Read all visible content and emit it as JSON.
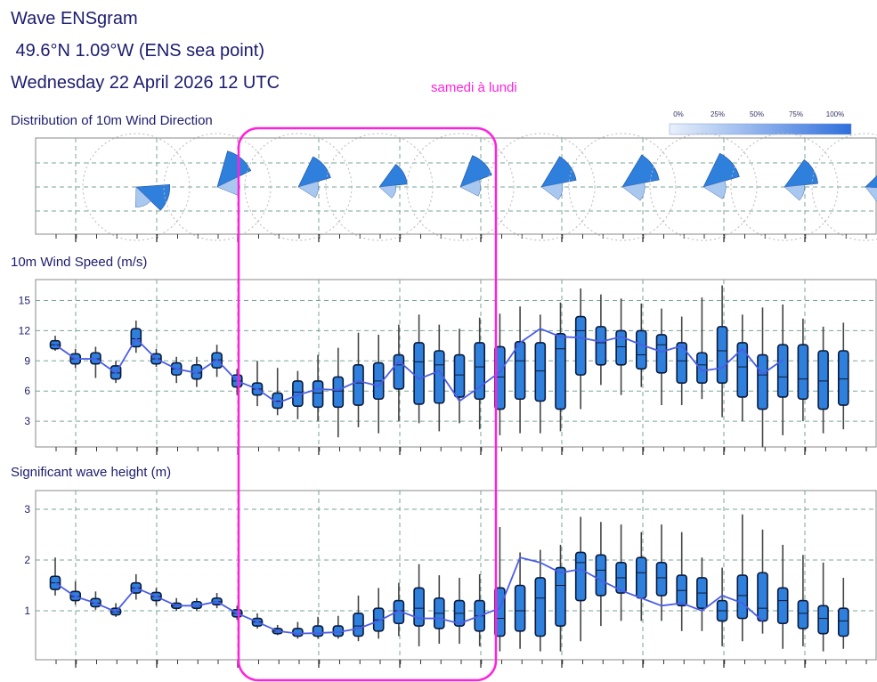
{
  "header": {
    "line1": "Wave ENSgram",
    "line2": " 49.6°N 1.09°W (ENS sea point)",
    "line3": "Wednesday 22 April 2026 12 UTC"
  },
  "annotation": {
    "text": "samedi à lundi",
    "color": "#ff22dd"
  },
  "colors": {
    "box": "#2f7fdc",
    "line": "#4a5ee8",
    "grid": "#7aa596",
    "frame": "#888888"
  },
  "chart_data": [
    {
      "type": "wind-rose-strip",
      "title": "Distribution of 10m Wind Direction",
      "legend": {
        "ticks": [
          "0%",
          "25%",
          "50%",
          "75%",
          "100%"
        ],
        "placement": "top-right"
      },
      "roses": [
        {
          "dir": 110,
          "strength": 0.9
        },
        {
          "dir": 40,
          "strength": 1.0
        },
        {
          "dir": 50,
          "strength": 0.9
        },
        {
          "dir": 60,
          "strength": 0.75
        },
        {
          "dir": 45,
          "strength": 0.9
        },
        {
          "dir": 55,
          "strength": 0.95
        },
        {
          "dir": 55,
          "strength": 1.0
        },
        {
          "dir": 50,
          "strength": 1.0
        },
        {
          "dir": 60,
          "strength": 0.9
        },
        {
          "dir": 70,
          "strength": 0.8
        }
      ]
    },
    {
      "type": "boxplot",
      "title": "10m Wind Speed (m/s)",
      "ylim": [
        0,
        17
      ],
      "yticks": [
        3,
        6,
        9,
        12,
        15
      ],
      "series": [
        {
          "min": 10,
          "q1": 10.2,
          "med": 10.6,
          "q3": 11,
          "max": 11.5
        },
        {
          "min": 8.3,
          "q1": 8.7,
          "med": 9.2,
          "q3": 9.7,
          "max": 10.2
        },
        {
          "min": 7.3,
          "q1": 8.7,
          "med": 9.2,
          "q3": 9.8,
          "max": 10.4
        },
        {
          "min": 6.8,
          "q1": 7.2,
          "med": 7.8,
          "q3": 8.5,
          "max": 9
        },
        {
          "min": 9.8,
          "q1": 10.4,
          "med": 11.2,
          "q3": 12.2,
          "max": 13
        },
        {
          "min": 8.4,
          "q1": 8.7,
          "med": 9.2,
          "q3": 9.7,
          "max": 10.2
        },
        {
          "min": 6.8,
          "q1": 7.6,
          "med": 8.2,
          "q3": 8.8,
          "max": 9.4
        },
        {
          "min": 6.4,
          "q1": 7.2,
          "med": 7.8,
          "q3": 8.6,
          "max": 9.4
        },
        {
          "min": 7.4,
          "q1": 8.3,
          "med": 9.1,
          "q3": 9.8,
          "max": 10.6
        },
        {
          "min": 5.6,
          "q1": 6.4,
          "med": 7,
          "q3": 7.6,
          "max": 8.2
        },
        {
          "min": 4.5,
          "q1": 5.6,
          "med": 6.2,
          "q3": 6.8,
          "max": 9
        },
        {
          "min": 3.6,
          "q1": 4.3,
          "med": 5,
          "q3": 5.8,
          "max": 8.3
        },
        {
          "min": 3.2,
          "q1": 4.5,
          "med": 5.9,
          "q3": 7,
          "max": 8
        },
        {
          "min": 3,
          "q1": 4.4,
          "med": 5.8,
          "q3": 7,
          "max": 9.6
        },
        {
          "min": 1.4,
          "q1": 4.4,
          "med": 6,
          "q3": 7.4,
          "max": 10.3
        },
        {
          "min": 2.4,
          "q1": 4.6,
          "med": 6.8,
          "q3": 8.6,
          "max": 11.8
        },
        {
          "min": 1.8,
          "q1": 5.2,
          "med": 7,
          "q3": 8.8,
          "max": 11.6
        },
        {
          "min": 3,
          "q1": 6.2,
          "med": 8.6,
          "q3": 9.6,
          "max": 12.6
        },
        {
          "min": 2.8,
          "q1": 4.7,
          "med": 8.9,
          "q3": 10.8,
          "max": 13.6
        },
        {
          "min": 2,
          "q1": 4.8,
          "med": 8.6,
          "q3": 10,
          "max": 12.6
        },
        {
          "min": 2.8,
          "q1": 5.4,
          "med": 7.6,
          "q3": 9.6,
          "max": 12.2
        },
        {
          "min": 2.2,
          "q1": 5.2,
          "med": 8.4,
          "q3": 10.8,
          "max": 13.3
        },
        {
          "min": 1.6,
          "q1": 4.2,
          "med": 7.4,
          "q3": 10.4,
          "max": 13.7
        },
        {
          "min": 1.8,
          "q1": 5.2,
          "med": 9,
          "q3": 10.9,
          "max": 14.4
        },
        {
          "min": 1.8,
          "q1": 5,
          "med": 8,
          "q3": 10.8,
          "max": 13.6
        },
        {
          "min": 2,
          "q1": 4.2,
          "med": 10.2,
          "q3": 11.7,
          "max": 14.8
        },
        {
          "min": 4.2,
          "q1": 7.6,
          "med": 12,
          "q3": 13.4,
          "max": 16.2
        },
        {
          "min": 6.6,
          "q1": 8.6,
          "med": 10.8,
          "q3": 12.4,
          "max": 15.6
        },
        {
          "min": 5.6,
          "q1": 8.6,
          "med": 10.4,
          "q3": 12,
          "max": 15.2
        },
        {
          "min": 6.4,
          "q1": 8.2,
          "med": 9.6,
          "q3": 12,
          "max": 14.7
        },
        {
          "min": 4.6,
          "q1": 7.8,
          "med": 10.6,
          "q3": 11.6,
          "max": 14.2
        },
        {
          "min": 4.6,
          "q1": 6.8,
          "med": 9,
          "q3": 10.8,
          "max": 13.4
        },
        {
          "min": 5.2,
          "q1": 6.8,
          "med": 8.6,
          "q3": 9.8,
          "max": 15.3
        },
        {
          "min": 3.4,
          "q1": 6.8,
          "med": 10,
          "q3": 12.4,
          "max": 16.5
        },
        {
          "min": 3,
          "q1": 5.4,
          "med": 8.4,
          "q3": 10.8,
          "max": 13.6
        },
        {
          "min": 0.4,
          "q1": 4.2,
          "med": 7.6,
          "q3": 9.6,
          "max": 14.3
        },
        {
          "min": 1.6,
          "q1": 5.4,
          "med": 7.4,
          "q3": 10.6,
          "max": 14.6
        },
        {
          "min": 3,
          "q1": 5.2,
          "med": 7.2,
          "q3": 10.6,
          "max": 13.2
        },
        {
          "min": 1.8,
          "q1": 4.2,
          "med": 7,
          "q3": 10,
          "max": 12.4
        },
        {
          "min": 2.2,
          "q1": 4.6,
          "med": 7.2,
          "q3": 10,
          "max": 12.8
        }
      ],
      "mean_line": [
        10.6,
        9.2,
        9.2,
        7.8,
        11.2,
        9.2,
        8.2,
        7.8,
        9.1,
        7,
        6.2,
        4.8,
        5.6,
        6.2,
        6.1,
        7,
        6.5,
        9,
        7.2,
        8,
        5,
        6.4,
        7.9,
        10.8,
        12.2,
        11.4,
        11.3,
        10.9,
        11.4,
        10.6,
        9.9,
        10.5,
        8,
        8.3,
        10.2,
        7.7,
        9.1
      ]
    },
    {
      "type": "boxplot",
      "title": "Significant wave height (m)",
      "ylim": [
        0,
        3.4
      ],
      "yticks": [
        1,
        2,
        3
      ],
      "series": [
        {
          "min": 1.3,
          "q1": 1.42,
          "med": 1.55,
          "q3": 1.68,
          "max": 2.05
        },
        {
          "min": 1.12,
          "q1": 1.2,
          "med": 1.28,
          "q3": 1.38,
          "max": 1.58
        },
        {
          "min": 1.02,
          "q1": 1.08,
          "med": 1.15,
          "q3": 1.24,
          "max": 1.38
        },
        {
          "min": 0.88,
          "q1": 0.92,
          "med": 0.98,
          "q3": 1.05,
          "max": 1.15
        },
        {
          "min": 1.22,
          "q1": 1.35,
          "med": 1.45,
          "q3": 1.55,
          "max": 1.72
        },
        {
          "min": 1.1,
          "q1": 1.2,
          "med": 1.28,
          "q3": 1.36,
          "max": 1.45
        },
        {
          "min": 1.0,
          "q1": 1.05,
          "med": 1.1,
          "q3": 1.15,
          "max": 1.25
        },
        {
          "min": 1.0,
          "q1": 1.05,
          "med": 1.1,
          "q3": 1.18,
          "max": 1.25
        },
        {
          "min": 1.05,
          "q1": 1.12,
          "med": 1.18,
          "q3": 1.25,
          "max": 1.35
        },
        {
          "min": 0.82,
          "q1": 0.88,
          "med": 0.95,
          "q3": 1.02,
          "max": 1.1
        },
        {
          "min": 0.65,
          "q1": 0.7,
          "med": 0.78,
          "q3": 0.85,
          "max": 0.95
        },
        {
          "min": 0.52,
          "q1": 0.55,
          "med": 0.6,
          "q3": 0.65,
          "max": 0.72
        },
        {
          "min": 0.45,
          "q1": 0.5,
          "med": 0.55,
          "q3": 0.65,
          "max": 0.78
        },
        {
          "min": 0.45,
          "q1": 0.5,
          "med": 0.56,
          "q3": 0.7,
          "max": 0.88
        },
        {
          "min": 0.45,
          "q1": 0.5,
          "med": 0.58,
          "q3": 0.7,
          "max": 0.9
        },
        {
          "min": 0.4,
          "q1": 0.5,
          "med": 0.7,
          "q3": 0.95,
          "max": 1.3
        },
        {
          "min": 0.45,
          "q1": 0.6,
          "med": 0.82,
          "q3": 1.05,
          "max": 1.45
        },
        {
          "min": 0.5,
          "q1": 0.75,
          "med": 1,
          "q3": 1.2,
          "max": 1.55
        },
        {
          "min": 0.3,
          "q1": 0.7,
          "med": 1.05,
          "q3": 1.45,
          "max": 1.92
        },
        {
          "min": 0.35,
          "q1": 0.65,
          "med": 0.95,
          "q3": 1.25,
          "max": 1.7
        },
        {
          "min": 0.35,
          "q1": 0.7,
          "med": 0.95,
          "q3": 1.2,
          "max": 1.65
        },
        {
          "min": 0.3,
          "q1": 0.6,
          "med": 0.9,
          "q3": 1.2,
          "max": 1.72
        },
        {
          "min": 0.2,
          "q1": 0.5,
          "med": 0.85,
          "q3": 1.45,
          "max": 2.65
        },
        {
          "min": 0.25,
          "q1": 0.6,
          "med": 1.0,
          "q3": 1.5,
          "max": 2.15
        },
        {
          "min": 0.2,
          "q1": 0.5,
          "med": 1.25,
          "q3": 1.65,
          "max": 2.2
        },
        {
          "min": 0.2,
          "q1": 0.7,
          "med": 1.5,
          "q3": 1.85,
          "max": 2.3
        },
        {
          "min": 0.4,
          "q1": 1.2,
          "med": 1.95,
          "q3": 2.15,
          "max": 2.85
        },
        {
          "min": 0.7,
          "q1": 1.3,
          "med": 1.8,
          "q3": 2.1,
          "max": 2.75
        },
        {
          "min": 0.8,
          "q1": 1.35,
          "med": 1.65,
          "q3": 1.95,
          "max": 2.7
        },
        {
          "min": 0.8,
          "q1": 1.25,
          "med": 1.75,
          "q3": 2.05,
          "max": 2.55
        },
        {
          "min": 0.8,
          "q1": 1.3,
          "med": 1.65,
          "q3": 1.95,
          "max": 2.7
        },
        {
          "min": 0.6,
          "q1": 1.1,
          "med": 1.4,
          "q3": 1.7,
          "max": 2.55
        },
        {
          "min": 0.6,
          "q1": 1.05,
          "med": 1.35,
          "q3": 1.65,
          "max": 2.05
        },
        {
          "min": 0.3,
          "q1": 0.8,
          "med": 1.0,
          "q3": 1.2,
          "max": 1.85
        },
        {
          "min": 0.4,
          "q1": 0.85,
          "med": 1.3,
          "q3": 1.7,
          "max": 2.9
        },
        {
          "min": 0.55,
          "q1": 0.8,
          "med": 1.05,
          "q3": 1.75,
          "max": 2.6
        },
        {
          "min": 0.25,
          "q1": 0.75,
          "med": 1.2,
          "q3": 1.45,
          "max": 2.3
        },
        {
          "min": 0.3,
          "q1": 0.65,
          "med": 0.95,
          "q3": 1.2,
          "max": 2.1
        },
        {
          "min": 0.2,
          "q1": 0.55,
          "med": 0.85,
          "q3": 1.1,
          "max": 1.95
        },
        {
          "min": 0.25,
          "q1": 0.5,
          "med": 0.8,
          "q3": 1.05,
          "max": 1.65
        }
      ],
      "mean_line": [
        1.55,
        1.28,
        1.15,
        0.98,
        1.45,
        1.28,
        1.1,
        1.1,
        1.18,
        0.95,
        0.78,
        0.6,
        0.55,
        0.56,
        0.58,
        0.65,
        0.8,
        1.0,
        0.85,
        0.85,
        0.75,
        0.9,
        1.05,
        2.05,
        1.95,
        1.75,
        1.82,
        1.6,
        1.4,
        1.25,
        1.1,
        1.15,
        1.0,
        1.3,
        1.15,
        0.8
      ]
    }
  ]
}
